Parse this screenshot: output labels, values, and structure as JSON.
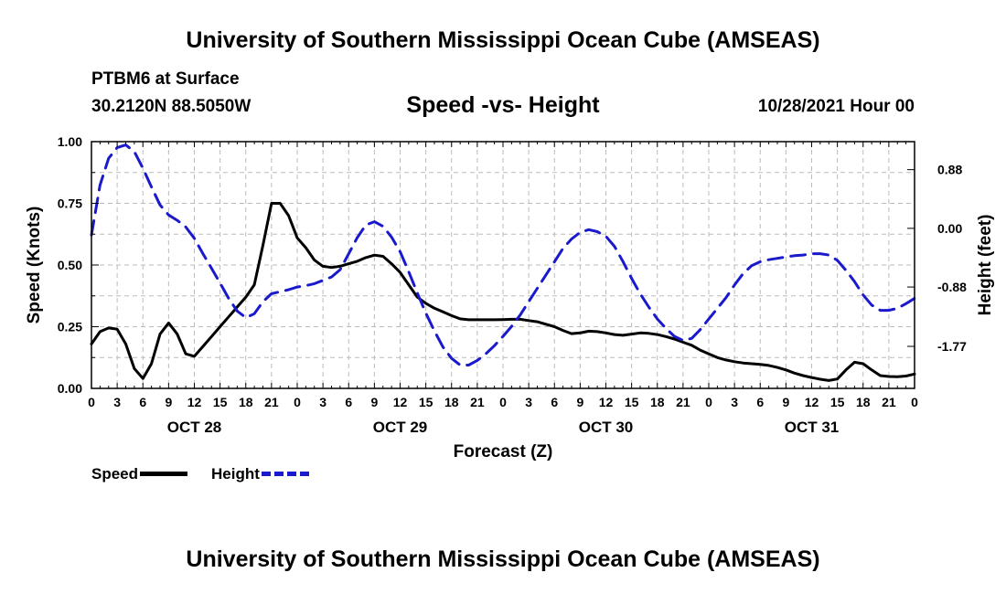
{
  "header": {
    "title": "University of Southern Mississippi Ocean Cube (AMSEAS)",
    "station": "PTBM6 at Surface",
    "coords": "30.2120N  88.5050W",
    "subtitle": "Speed -vs- Height",
    "datetime": "10/28/2021 Hour 00"
  },
  "footer": {
    "title": "University of Southern Mississippi Ocean Cube (AMSEAS)"
  },
  "colors": {
    "speed": "#000000",
    "height": "#1a1acc",
    "grid": "#bbbbbb"
  },
  "legend": {
    "speed_label": "Speed",
    "height_label": "Height"
  },
  "chart_data": {
    "type": "line",
    "title": "Speed -vs- Height",
    "xlabel": "Forecast (Z)",
    "ylabel": "Speed (Knots)",
    "y2label": "Height (feet)",
    "xlim": [
      0,
      96
    ],
    "ylim": [
      0,
      1
    ],
    "y2lim": [
      -2.4,
      1.3
    ],
    "x_ticks": [
      0,
      3,
      6,
      9,
      12,
      15,
      18,
      21,
      24,
      27,
      30,
      33,
      36,
      39,
      42,
      45,
      48,
      51,
      54,
      57,
      60,
      63,
      66,
      69,
      72,
      75,
      78,
      81,
      84,
      87,
      90,
      93,
      96
    ],
    "x_tick_labels": [
      "0",
      "3",
      "6",
      "9",
      "12",
      "15",
      "18",
      "21",
      "0",
      "3",
      "6",
      "9",
      "12",
      "15",
      "18",
      "21",
      "0",
      "3",
      "6",
      "9",
      "12",
      "15",
      "18",
      "21",
      "0",
      "3",
      "6",
      "9",
      "12",
      "15",
      "18",
      "21",
      "0"
    ],
    "day_labels": [
      {
        "x": 12,
        "label": "OCT 28"
      },
      {
        "x": 36,
        "label": "OCT 29"
      },
      {
        "x": 60,
        "label": "OCT 30"
      },
      {
        "x": 84,
        "label": "OCT 31"
      }
    ],
    "y_ticks": [
      0,
      0.25,
      0.5,
      0.75,
      1
    ],
    "y_tick_labels": [
      "0.00",
      "0.25",
      "0.50",
      "0.75",
      "1.00"
    ],
    "y2_ticks": [
      0.88,
      0,
      -0.88,
      -1.77
    ],
    "y2_tick_labels": [
      "0.88",
      "0.00",
      "-0.88",
      "-1.77"
    ],
    "grid": true,
    "series": [
      {
        "name": "Speed",
        "axis": "left",
        "style": "solid",
        "x": [
          0,
          1,
          2,
          3,
          4,
          5,
          6,
          7,
          8,
          9,
          10,
          11,
          12,
          13,
          14,
          15,
          16,
          17,
          18,
          19,
          20,
          21,
          22,
          23,
          24,
          25,
          26,
          27,
          28,
          29,
          30,
          31,
          32,
          33,
          34,
          35,
          36,
          37,
          38,
          39,
          40,
          41,
          42,
          43,
          44,
          45,
          46,
          47,
          48,
          49,
          50,
          51,
          52,
          53,
          54,
          55,
          56,
          57,
          58,
          59,
          60,
          61,
          62,
          63,
          64,
          65,
          66,
          67,
          68,
          69,
          70,
          71,
          72,
          73,
          74,
          75,
          76,
          77,
          78,
          79,
          80,
          81,
          82,
          83,
          84,
          85,
          86,
          87,
          88,
          89,
          90,
          91,
          92,
          93,
          94,
          95,
          96
        ],
        "values": [
          0.18,
          0.23,
          0.245,
          0.24,
          0.18,
          0.08,
          0.04,
          0.1,
          0.22,
          0.265,
          0.22,
          0.14,
          0.13,
          0.17,
          0.21,
          0.25,
          0.29,
          0.33,
          0.37,
          0.42,
          0.58,
          0.75,
          0.75,
          0.7,
          0.61,
          0.57,
          0.52,
          0.495,
          0.49,
          0.495,
          0.505,
          0.515,
          0.53,
          0.54,
          0.535,
          0.505,
          0.47,
          0.42,
          0.37,
          0.345,
          0.325,
          0.31,
          0.295,
          0.282,
          0.278,
          0.278,
          0.278,
          0.278,
          0.279,
          0.28,
          0.28,
          0.275,
          0.27,
          0.26,
          0.25,
          0.235,
          0.222,
          0.225,
          0.232,
          0.23,
          0.225,
          0.218,
          0.215,
          0.22,
          0.225,
          0.223,
          0.218,
          0.21,
          0.2,
          0.187,
          0.175,
          0.155,
          0.14,
          0.125,
          0.115,
          0.108,
          0.103,
          0.1,
          0.097,
          0.093,
          0.085,
          0.075,
          0.062,
          0.052,
          0.044,
          0.037,
          0.032,
          0.038,
          0.075,
          0.106,
          0.1,
          0.075,
          0.052,
          0.048,
          0.047,
          0.05,
          0.058
        ]
      },
      {
        "name": "Height",
        "axis": "right",
        "style": "dashed",
        "x": [
          0,
          1,
          2,
          3,
          4,
          5,
          6,
          7,
          8,
          9,
          10,
          11,
          12,
          13,
          14,
          15,
          16,
          17,
          18,
          19,
          20,
          21,
          22,
          23,
          24,
          25,
          26,
          27,
          28,
          29,
          30,
          31,
          32,
          33,
          34,
          35,
          36,
          37,
          38,
          39,
          40,
          41,
          42,
          43,
          44,
          45,
          46,
          47,
          48,
          49,
          50,
          51,
          52,
          53,
          54,
          55,
          56,
          57,
          58,
          59,
          60,
          61,
          62,
          63,
          64,
          65,
          66,
          67,
          68,
          69,
          70,
          71,
          72,
          73,
          74,
          75,
          76,
          77,
          78,
          79,
          80,
          81,
          82,
          83,
          84,
          85,
          86,
          87,
          88,
          89,
          90,
          91,
          92,
          93,
          94,
          95,
          96
        ],
        "values": [
          -0.1,
          0.65,
          1.05,
          1.21,
          1.25,
          1.15,
          0.9,
          0.62,
          0.35,
          0.2,
          0.12,
          0.02,
          -0.15,
          -0.38,
          -0.6,
          -0.82,
          -1.05,
          -1.24,
          -1.34,
          -1.28,
          -1.1,
          -0.98,
          -0.95,
          -0.92,
          -0.88,
          -0.86,
          -0.83,
          -0.78,
          -0.73,
          -0.62,
          -0.38,
          -0.14,
          0.05,
          0.1,
          0.03,
          -0.13,
          -0.35,
          -0.65,
          -0.97,
          -1.27,
          -1.54,
          -1.78,
          -1.95,
          -2.05,
          -2.05,
          -1.98,
          -1.88,
          -1.76,
          -1.62,
          -1.47,
          -1.3,
          -1.1,
          -0.9,
          -0.7,
          -0.5,
          -0.3,
          -0.16,
          -0.06,
          -0.02,
          -0.05,
          -0.12,
          -0.27,
          -0.5,
          -0.75,
          -0.98,
          -1.18,
          -1.36,
          -1.5,
          -1.62,
          -1.68,
          -1.65,
          -1.52,
          -1.36,
          -1.2,
          -1.04,
          -0.85,
          -0.68,
          -0.56,
          -0.5,
          -0.47,
          -0.45,
          -0.43,
          -0.41,
          -0.4,
          -0.38,
          -0.38,
          -0.4,
          -0.48,
          -0.63,
          -0.8,
          -1.0,
          -1.15,
          -1.23,
          -1.23,
          -1.2,
          -1.13,
          -1.05
        ]
      }
    ]
  }
}
